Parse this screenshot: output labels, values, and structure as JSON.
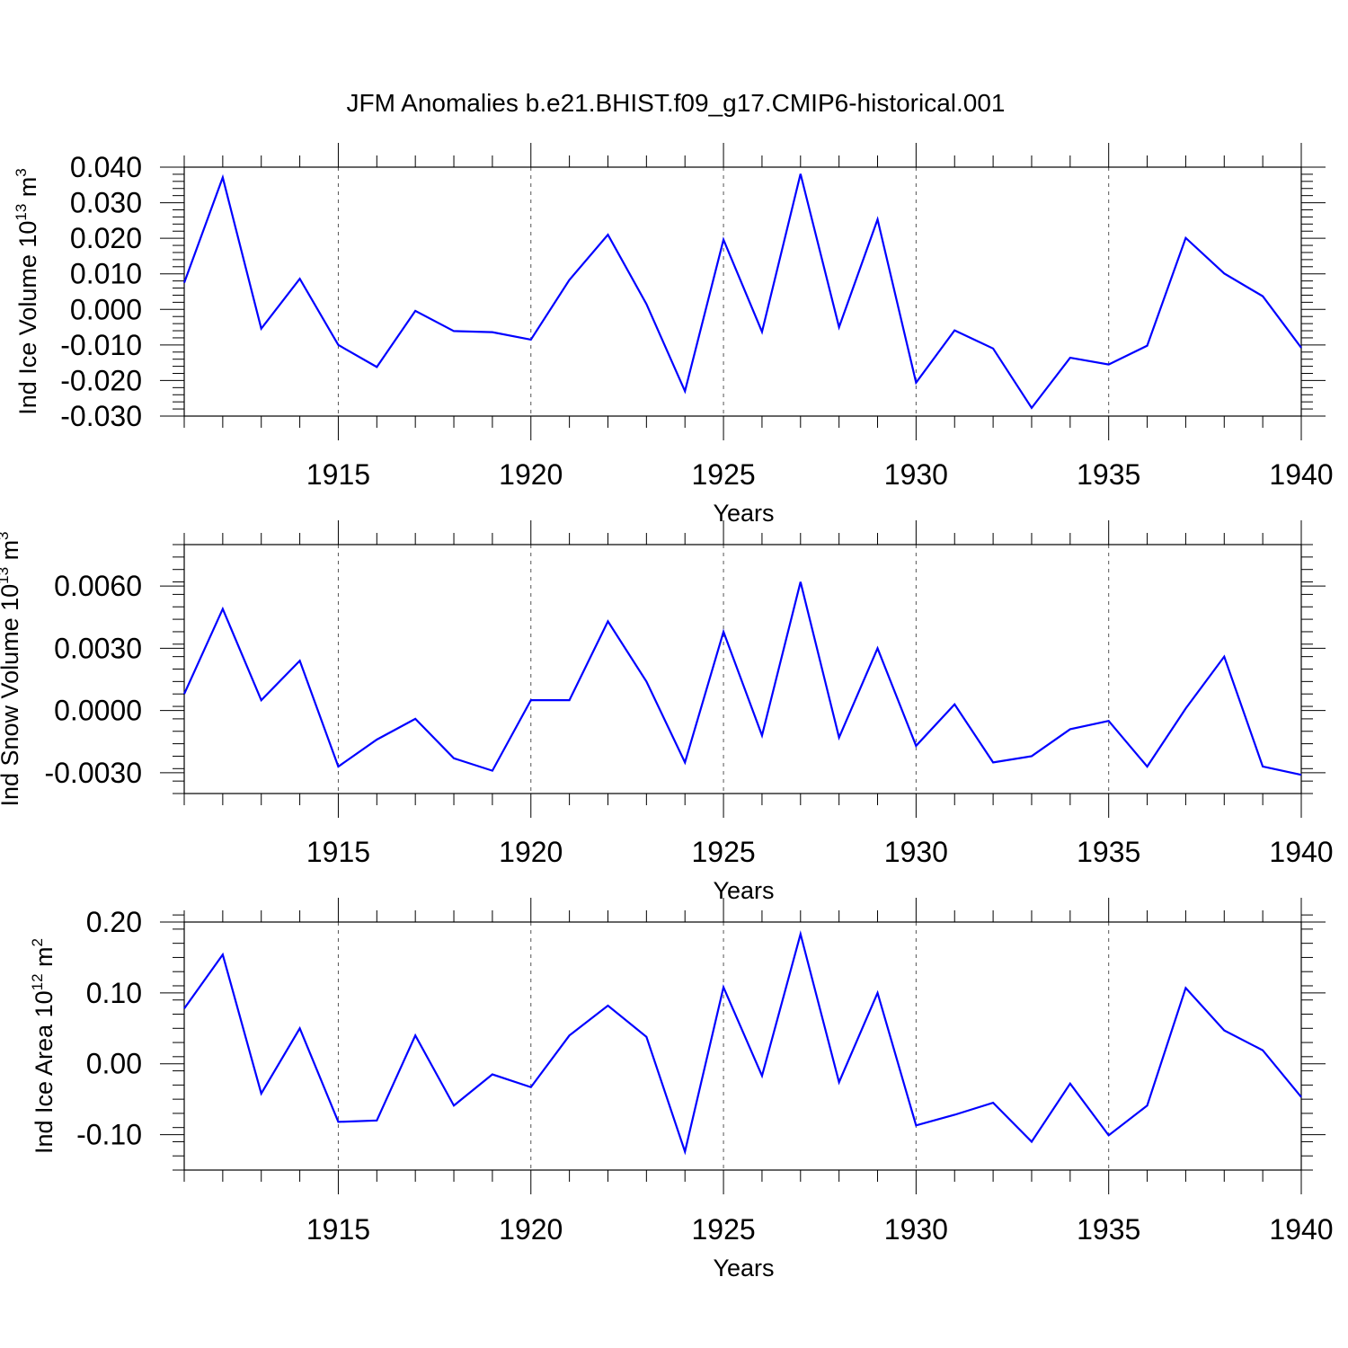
{
  "title": "JFM Anomalies b.e21.BHIST.f09_g17.CMIP6-historical.001",
  "colors": {
    "series": "#0000ff",
    "grid": "#555555",
    "axis": "#000000"
  },
  "chart_data": [
    {
      "type": "line",
      "ylabel": {
        "prefix": "Ind Ice Volume 10",
        "exp": "13",
        "unit": " m",
        "unit_exp": "3"
      },
      "xlabel": "Years",
      "xlim": [
        1911,
        1940
      ],
      "ylim": [
        -0.03,
        0.04
      ],
      "xticks": [
        1915,
        1920,
        1925,
        1930,
        1935,
        1940
      ],
      "yticks": [
        -0.03,
        -0.02,
        -0.01,
        0.0,
        0.01,
        0.02,
        0.03,
        0.04
      ],
      "ytick_labels": [
        "-0.030",
        "-0.020",
        "-0.010",
        "0.000",
        "0.010",
        "0.020",
        "0.030",
        "0.040"
      ],
      "yminor_step": 0.002,
      "grid": "vertical-dashed",
      "x": [
        1911,
        1912,
        1913,
        1914,
        1915,
        1916,
        1917,
        1918,
        1919,
        1920,
        1921,
        1922,
        1923,
        1924,
        1925,
        1926,
        1927,
        1928,
        1929,
        1930,
        1931,
        1932,
        1933,
        1934,
        1935,
        1936,
        1937,
        1938,
        1939,
        1940
      ],
      "series": [
        {
          "name": "Ind Ice Volume",
          "values": [
            0.0075,
            0.0371,
            -0.0054,
            0.0086,
            -0.01,
            -0.0162,
            -0.0004,
            -0.0061,
            -0.0064,
            -0.0085,
            0.0083,
            0.021,
            0.0015,
            -0.023,
            0.0196,
            -0.0063,
            0.0381,
            -0.005,
            0.0253,
            -0.0206,
            -0.0059,
            -0.011,
            -0.0277,
            -0.0136,
            -0.0155,
            -0.0102,
            0.0201,
            0.0101,
            0.0037,
            -0.0108
          ]
        }
      ]
    },
    {
      "type": "line",
      "ylabel": {
        "prefix": "Ind Snow Volume 10",
        "exp": "13",
        "unit": " m",
        "unit_exp": "3"
      },
      "xlabel": "Years",
      "xlim": [
        1911,
        1940
      ],
      "ylim": [
        -0.004,
        0.008
      ],
      "xticks": [
        1915,
        1920,
        1925,
        1930,
        1935,
        1940
      ],
      "yticks": [
        -0.003,
        0.0,
        0.003,
        0.006
      ],
      "ytick_labels": [
        "-0.0030",
        "0.0000",
        "0.0030",
        "0.0060"
      ],
      "yminor_step": 0.0006,
      "grid": "vertical-dashed",
      "x": [
        1911,
        1912,
        1913,
        1914,
        1915,
        1916,
        1917,
        1918,
        1919,
        1920,
        1921,
        1922,
        1923,
        1924,
        1925,
        1926,
        1927,
        1928,
        1929,
        1930,
        1931,
        1932,
        1933,
        1934,
        1935,
        1936,
        1937,
        1938,
        1939,
        1940
      ],
      "series": [
        {
          "name": "Ind Snow Volume",
          "values": [
            0.0008,
            0.0049,
            0.0005,
            0.0024,
            -0.0027,
            -0.0014,
            -0.0004,
            -0.0023,
            -0.0029,
            0.0005,
            0.0005,
            0.0043,
            0.0014,
            -0.0025,
            0.0038,
            -0.0012,
            0.0062,
            -0.0013,
            0.003,
            -0.0017,
            0.0003,
            -0.0025,
            -0.0022,
            -0.0009,
            -0.0005,
            -0.0027,
            0.0001,
            0.0026,
            -0.0027,
            -0.0031
          ]
        }
      ]
    },
    {
      "type": "line",
      "ylabel": {
        "prefix": "Ind Ice Area 10",
        "exp": "12",
        "unit": " m",
        "unit_exp": "2"
      },
      "xlabel": "Years",
      "xlim": [
        1911,
        1940
      ],
      "ylim": [
        -0.15,
        0.2
      ],
      "xticks": [
        1915,
        1920,
        1925,
        1930,
        1935,
        1940
      ],
      "yticks": [
        -0.1,
        0.0,
        0.1,
        0.2
      ],
      "ytick_labels": [
        "-0.10",
        "0.00",
        "0.10",
        "0.20"
      ],
      "yminor_step": 0.02,
      "grid": "vertical-dashed",
      "x": [
        1911,
        1912,
        1913,
        1914,
        1915,
        1916,
        1917,
        1918,
        1919,
        1920,
        1921,
        1922,
        1923,
        1924,
        1925,
        1926,
        1927,
        1928,
        1929,
        1930,
        1931,
        1932,
        1933,
        1934,
        1935,
        1936,
        1937,
        1938,
        1939,
        1940
      ],
      "series": [
        {
          "name": "Ind Ice Area",
          "values": [
            0.078,
            0.154,
            -0.042,
            0.05,
            -0.082,
            -0.08,
            0.04,
            -0.059,
            -0.015,
            -0.033,
            0.04,
            0.082,
            0.038,
            -0.124,
            0.108,
            -0.017,
            0.183,
            -0.026,
            0.1,
            -0.087,
            -0.072,
            -0.055,
            -0.11,
            -0.028,
            -0.101,
            -0.059,
            0.107,
            0.047,
            0.019,
            -0.047
          ]
        }
      ]
    }
  ]
}
